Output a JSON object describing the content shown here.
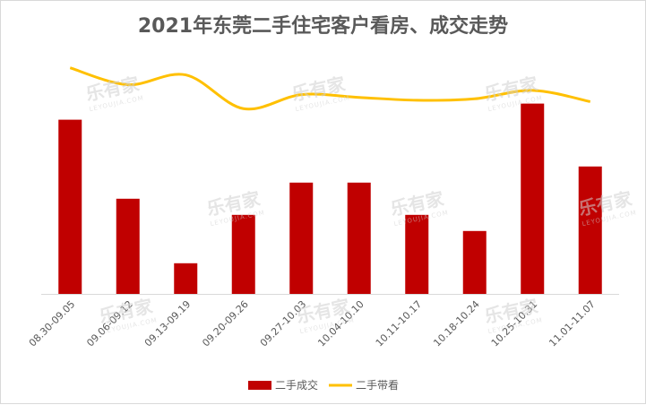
{
  "chart_data": {
    "type": "bar+line",
    "title": "2021年东莞二手住宅客户看房、成交走势",
    "categories": [
      "08.30-09.05",
      "09.06-09.12",
      "09.13-09.19",
      "09.20-09.26",
      "09.27-10.03",
      "10.04-10.10",
      "10.11-10.17",
      "10.18-10.24",
      "10.25-10.31",
      "11.01-11.07"
    ],
    "series": [
      {
        "name": "二手成交",
        "type": "bar",
        "color": "#c00000",
        "values": [
          108,
          59,
          19,
          49,
          69,
          69,
          49,
          39,
          118,
          79
        ]
      },
      {
        "name": "二手带看",
        "type": "line",
        "color": "#ffc000",
        "values": [
          142,
          130,
          137,
          113,
          123,
          121,
          119,
          120,
          126,
          118
        ]
      }
    ],
    "legend_position": "bottom",
    "grid": false,
    "watermark": "乐有家",
    "watermark_sub": "LEYOUJIA.COM"
  }
}
